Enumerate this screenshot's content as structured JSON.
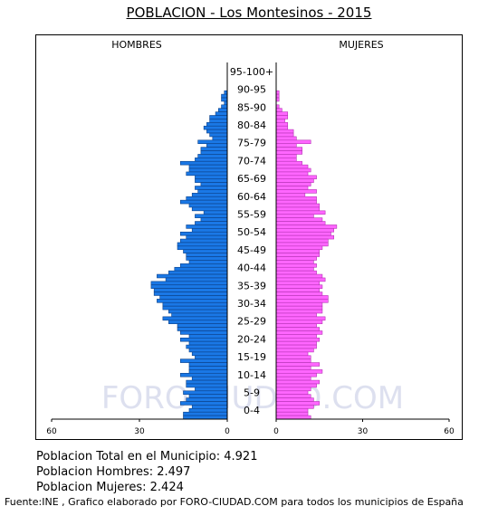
{
  "title": "POBLACION - Los Montesinos - 2015",
  "watermark": "FORO-CIUDAD.COM",
  "stats": {
    "total": "Poblacion Total en el Municipio: 4.921",
    "hombres": "Poblacion Hombres: 2.497",
    "mujeres": "Poblacion Mujeres: 2.424"
  },
  "footer": "Fuente:INE , Grafico elaborado por FORO-CIUDAD.COM para todos los municipios de España",
  "colors": {
    "men": "#1a78e6",
    "women": "#ff66ff",
    "watermark": "#dde0ef"
  },
  "chart_data": {
    "type": "bar",
    "orientation": "horizontal",
    "subtype": "population-pyramid",
    "left_label": "HOMBRES",
    "right_label": "MUJERES",
    "age_labels": [
      "0-4",
      "5-9",
      "10-14",
      "15-19",
      "20-24",
      "25-29",
      "30-34",
      "35-39",
      "40-44",
      "45-49",
      "50-54",
      "55-59",
      "60-64",
      "65-69",
      "70-74",
      "75-79",
      "80-84",
      "85-90",
      "90-95",
      "95-100+"
    ],
    "x_ticks_left": [
      "60",
      "30",
      "0"
    ],
    "x_ticks_right": [
      "0",
      "30",
      "60"
    ],
    "xlim": [
      0,
      60
    ],
    "bar_order": "single ages, oldest at top",
    "series": [
      {
        "name": "HOMBRES",
        "values": [
          0,
          0,
          0,
          0,
          0,
          0,
          0,
          0,
          1,
          2,
          2,
          1,
          2,
          3,
          4,
          6,
          6,
          7,
          8,
          7,
          6,
          5,
          10,
          7,
          9,
          9,
          10,
          11,
          16,
          13,
          13,
          14,
          11,
          11,
          9,
          11,
          10,
          12,
          14,
          16,
          13,
          12,
          8,
          11,
          9,
          11,
          14,
          12,
          16,
          14,
          16,
          17,
          17,
          15,
          14,
          14,
          13,
          16,
          18,
          20,
          24,
          21,
          26,
          26,
          25,
          25,
          23,
          24,
          22,
          22,
          20,
          19,
          22,
          20,
          17,
          17,
          16,
          13,
          16,
          13,
          14,
          13,
          12,
          11,
          16,
          13,
          13,
          13,
          16,
          12,
          14,
          14,
          11,
          15,
          13,
          14,
          16,
          12,
          13,
          15,
          15
        ]
      },
      {
        "name": "MUJERES",
        "values": [
          0,
          0,
          0,
          0,
          0,
          0,
          0,
          0,
          1,
          1,
          1,
          0,
          1,
          2,
          4,
          4,
          3,
          4,
          4,
          6,
          6,
          7,
          12,
          7,
          9,
          9,
          7,
          7,
          9,
          11,
          12,
          11,
          14,
          13,
          12,
          11,
          14,
          10,
          14,
          14,
          15,
          15,
          17,
          13,
          16,
          17,
          21,
          20,
          19,
          20,
          18,
          18,
          16,
          15,
          15,
          14,
          13,
          14,
          13,
          14,
          16,
          17,
          15,
          16,
          15,
          16,
          18,
          18,
          16,
          16,
          16,
          14,
          17,
          16,
          14,
          15,
          16,
          14,
          15,
          14,
          14,
          13,
          11,
          12,
          12,
          15,
          12,
          16,
          14,
          12,
          15,
          14,
          12,
          11,
          12,
          13,
          15,
          13,
          11,
          11,
          12
        ]
      }
    ]
  }
}
